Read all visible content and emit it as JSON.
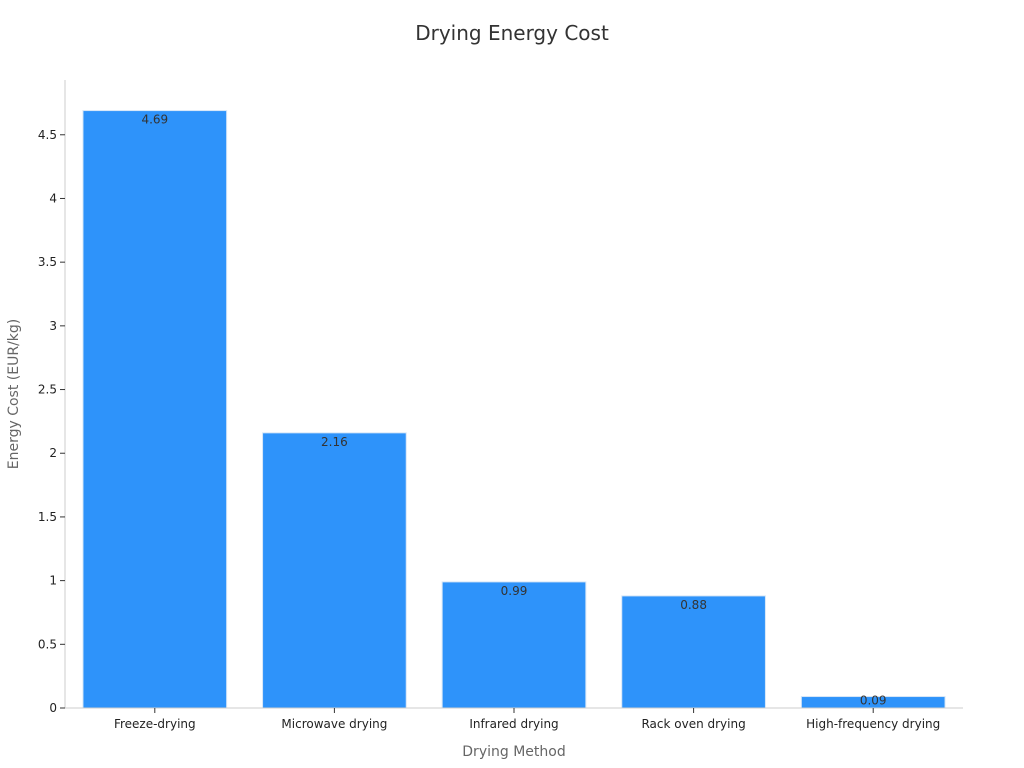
{
  "chart_data": {
    "type": "bar",
    "title": "Drying Energy Cost",
    "xlabel": "Drying Method",
    "ylabel": "Energy Cost (EUR/kg)",
    "categories": [
      "Freeze-drying",
      "Microwave drying",
      "Infrared drying",
      "Rack oven drying",
      "High-frequency drying"
    ],
    "values": [
      4.69,
      2.16,
      0.99,
      0.88,
      0.09
    ],
    "value_labels": [
      "4.69",
      "2.16",
      "0.99",
      "0.88",
      "0.09"
    ],
    "ylim": [
      0,
      4.93
    ],
    "yticks": [
      0,
      0.5,
      1,
      1.5,
      2,
      2.5,
      3,
      3.5,
      4,
      4.5
    ],
    "ytick_labels": [
      "0",
      "0.5",
      "1",
      "1.5",
      "2",
      "2.5",
      "3",
      "3.5",
      "4",
      "4.5"
    ],
    "grid": false,
    "color": "#2e93fa"
  }
}
